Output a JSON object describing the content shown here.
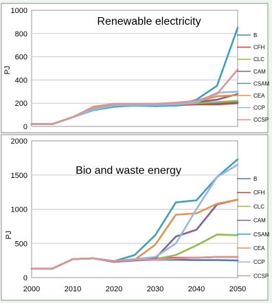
{
  "chart_data": [
    {
      "type": "line",
      "title": "Renewable electricity",
      "xlabel": "",
      "ylabel": "PJ",
      "xlim": [
        2000,
        2050
      ],
      "ylim": [
        0,
        1000
      ],
      "xticks": [
        2000,
        2010,
        2020,
        2030,
        2040,
        2050
      ],
      "yticks": [
        0,
        200,
        400,
        600,
        800,
        1000
      ],
      "grid": "horizontal",
      "legend_position": "right",
      "x": [
        2000,
        2005,
        2010,
        2015,
        2020,
        2025,
        2030,
        2035,
        2040,
        2045,
        2050
      ],
      "series": [
        {
          "name": "B",
          "color": "#4a7ebb",
          "values": [
            20,
            20,
            80,
            150,
            175,
            180,
            180,
            180,
            195,
            200,
            210
          ]
        },
        {
          "name": "CFH",
          "color": "#be4b48",
          "values": [
            20,
            20,
            80,
            150,
            175,
            185,
            185,
            185,
            190,
            190,
            200
          ]
        },
        {
          "name": "CLC",
          "color": "#98b954",
          "values": [
            20,
            20,
            80,
            150,
            175,
            185,
            185,
            190,
            200,
            210,
            220
          ]
        },
        {
          "name": "CAM",
          "color": "#7d60a0",
          "values": [
            20,
            20,
            80,
            145,
            175,
            185,
            185,
            190,
            210,
            230,
            280
          ]
        },
        {
          "name": "CSAM",
          "color": "#3fa0ba",
          "values": [
            20,
            20,
            80,
            140,
            170,
            180,
            175,
            180,
            230,
            350,
            850
          ]
        },
        {
          "name": "CEA",
          "color": "#e6914e",
          "values": [
            20,
            20,
            80,
            155,
            185,
            190,
            190,
            200,
            215,
            260,
            270
          ]
        },
        {
          "name": "CCP",
          "color": "#97b9e0",
          "values": [
            20,
            20,
            80,
            145,
            180,
            185,
            185,
            190,
            205,
            290,
            300
          ]
        },
        {
          "name": "CCSP",
          "color": "#d99694",
          "values": [
            20,
            20,
            80,
            170,
            195,
            195,
            195,
            205,
            220,
            280,
            490
          ]
        }
      ]
    },
    {
      "type": "line",
      "title": "Bio and waste energy",
      "xlabel": "",
      "ylabel": "PJ",
      "xlim": [
        2000,
        2050
      ],
      "ylim": [
        0,
        2000
      ],
      "xticks": [
        2000,
        2010,
        2020,
        2030,
        2040,
        2050
      ],
      "yticks": [
        0,
        500,
        1000,
        1500,
        2000
      ],
      "grid": "horizontal",
      "legend_position": "right",
      "x": [
        2000,
        2005,
        2010,
        2015,
        2020,
        2025,
        2030,
        2035,
        2040,
        2045,
        2050
      ],
      "series": [
        {
          "name": "B",
          "color": "#4a7ebb",
          "values": [
            130,
            130,
            270,
            280,
            240,
            250,
            260,
            260,
            255,
            255,
            250
          ]
        },
        {
          "name": "CFH",
          "color": "#be4b48",
          "values": [
            130,
            130,
            270,
            280,
            240,
            260,
            280,
            290,
            290,
            300,
            300
          ]
        },
        {
          "name": "CLC",
          "color": "#98b954",
          "values": [
            130,
            130,
            270,
            280,
            240,
            260,
            270,
            330,
            470,
            630,
            620
          ]
        },
        {
          "name": "CAM",
          "color": "#7d60a0",
          "values": [
            130,
            130,
            270,
            280,
            230,
            250,
            280,
            600,
            700,
            1070,
            1140
          ]
        },
        {
          "name": "CSAM",
          "color": "#3fa0ba",
          "values": [
            130,
            130,
            270,
            280,
            240,
            330,
            620,
            1100,
            1130,
            1470,
            1730
          ]
        },
        {
          "name": "CEA",
          "color": "#e6914e",
          "values": [
            130,
            130,
            270,
            280,
            240,
            260,
            480,
            920,
            940,
            1080,
            1140
          ]
        },
        {
          "name": "CCP",
          "color": "#97b9e0",
          "values": [
            130,
            130,
            270,
            280,
            240,
            270,
            300,
            500,
            1000,
            1470,
            1650
          ]
        },
        {
          "name": "CCSP",
          "color": "#d99694",
          "values": [
            130,
            130,
            270,
            280,
            240,
            260,
            260,
            280,
            290,
            300,
            300
          ]
        }
      ]
    }
  ]
}
